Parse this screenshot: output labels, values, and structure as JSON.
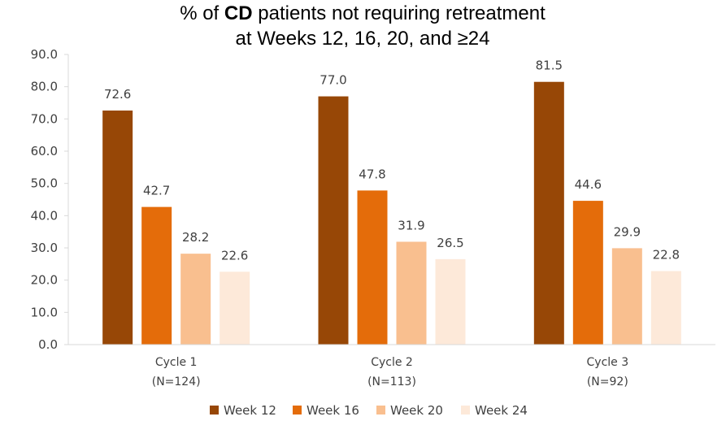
{
  "chart_data": {
    "type": "bar",
    "title": {
      "prefix": "% of ",
      "bold": "CD",
      "suffix": " patients not requiring retreatment",
      "line2": "at Weeks 12, 16, 20, and ≥24"
    },
    "categories": [
      {
        "name": "Cycle 1",
        "n": "(N=124)"
      },
      {
        "name": "Cycle 2",
        "n": "(N=113)"
      },
      {
        "name": "Cycle 3",
        "n": "(N=92)"
      }
    ],
    "series": [
      {
        "name": "Week 12",
        "color": "#974706",
        "values": [
          72.6,
          77.0,
          81.5
        ],
        "labels": [
          "72.6",
          "77.0",
          "81.5"
        ]
      },
      {
        "name": "Week 16",
        "color": "#E46C0A",
        "values": [
          42.7,
          47.8,
          44.6
        ],
        "labels": [
          "42.7",
          "47.8",
          "44.6"
        ]
      },
      {
        "name": "Week 20",
        "color": "#F9BF8F",
        "values": [
          28.2,
          31.9,
          29.9
        ],
        "labels": [
          "28.2",
          "31.9",
          "29.9"
        ]
      },
      {
        "name": "Week 24",
        "color": "#FDE9D9",
        "values": [
          22.6,
          26.5,
          22.8
        ],
        "labels": [
          "22.6",
          "26.5",
          "22.8"
        ]
      }
    ],
    "y_ticks": [
      "0.0",
      "10.0",
      "20.0",
      "30.0",
      "40.0",
      "50.0",
      "60.0",
      "70.0",
      "80.0",
      "90.0"
    ],
    "ylim": [
      0,
      90
    ],
    "xlabel": "",
    "ylabel": "",
    "legend_position": "bottom",
    "grid": false
  }
}
